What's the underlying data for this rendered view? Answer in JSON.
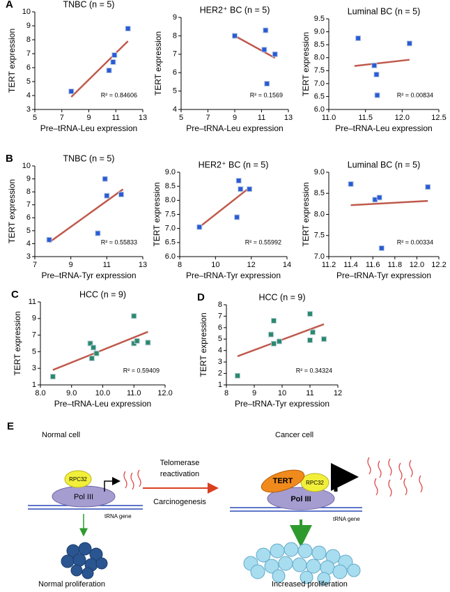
{
  "chart_data": [
    {
      "type": "scatter",
      "panel": "A",
      "title": "TNBC (n = 5)",
      "x_label": "Pre–tRNA-Leu expression",
      "y_label": "TERT expression",
      "annotation": "R² = 0.84606",
      "color": "#2a5bd7",
      "fit_color": "#bf5a4c",
      "x": [
        7.7,
        10.5,
        10.8,
        10.9,
        11.9
      ],
      "y": [
        4.3,
        5.8,
        6.4,
        6.9,
        8.8
      ],
      "fit": {
        "x": [
          7.7,
          11.9
        ],
        "y": [
          3.9,
          7.9
        ]
      },
      "xlim": [
        5,
        13
      ],
      "ylim": [
        3,
        10
      ],
      "xticks": [
        5,
        7,
        9,
        11,
        13
      ],
      "yticks": [
        3,
        4,
        5,
        6,
        7,
        8,
        9,
        10
      ]
    },
    {
      "type": "scatter",
      "title": "HER2⁺ BC (n = 5)",
      "x_label": "Pre–tRNA-Leu expression",
      "y_label": "TERT expression",
      "annotation": "R² = 0.1569",
      "color": "#2a5bd7",
      "fit_color": "#bf5a4c",
      "x": [
        9.0,
        11.2,
        11.3,
        11.4,
        12.0
      ],
      "y": [
        8.0,
        7.25,
        8.3,
        5.4,
        7.0
      ],
      "fit": {
        "x": [
          9.0,
          12.0
        ],
        "y": [
          8.0,
          6.8
        ]
      },
      "xlim": [
        5,
        13
      ],
      "ylim": [
        4,
        9
      ],
      "xticks": [
        5,
        7,
        9,
        11,
        13
      ],
      "yticks": [
        4,
        5,
        6,
        7,
        8,
        9
      ]
    },
    {
      "type": "scatter",
      "title": "Luminal BC (n = 5)",
      "x_label": "Pre–tRNA-Leu expression",
      "y_label": "TERT expression",
      "annotation": "R² = 0.00834",
      "color": "#2a5bd7",
      "fit_color": "#bf5a4c",
      "x": [
        11.4,
        11.62,
        11.65,
        11.66,
        12.1
      ],
      "y": [
        8.75,
        7.7,
        7.35,
        6.55,
        8.55
      ],
      "fit": {
        "x": [
          11.35,
          12.1
        ],
        "y": [
          7.68,
          7.92
        ]
      },
      "xlim": [
        11,
        12.5
      ],
      "ylim": [
        6,
        9.5
      ],
      "xticks": [
        {
          "value": 11,
          "label": "11.0"
        },
        11.5,
        {
          "value": 12,
          "label": "12.0"
        },
        12.5
      ],
      "yticks": [
        {
          "value": 6,
          "label": "6.0"
        },
        6.5,
        {
          "value": 7,
          "label": "7.0"
        },
        7.5,
        {
          "value": 8,
          "label": "8.0"
        },
        8.5,
        {
          "value": 9,
          "label": "9.0"
        },
        9.5
      ]
    },
    {
      "type": "scatter",
      "panel": "B",
      "title": "TNBC (n = 5)",
      "x_label": "Pre–tRNA-Tyr expression",
      "y_label": "TERT expression",
      "annotation": "R² = 0.55833",
      "color": "#2a5bd7",
      "fit_color": "#bf5a4c",
      "x": [
        7.8,
        10.5,
        10.9,
        11.0,
        11.8
      ],
      "y": [
        4.3,
        4.8,
        9.0,
        7.7,
        7.8
      ],
      "fit": {
        "x": [
          7.8,
          11.9
        ],
        "y": [
          4.1,
          8.2
        ]
      },
      "xlim": [
        7,
        13
      ],
      "ylim": [
        3,
        10
      ],
      "xticks": [
        7,
        9,
        11,
        13
      ],
      "yticks": [
        3,
        4,
        5,
        6,
        7,
        8,
        9,
        10
      ]
    },
    {
      "type": "scatter",
      "title": "HER2⁺ BC (n = 5)",
      "x_label": "Pre–tRNA-Tyr expression",
      "y_label": "TERT expression",
      "annotation": "R² = 0.55992",
      "color": "#2a5bd7",
      "fit_color": "#bf5a4c",
      "x": [
        9.1,
        11.2,
        11.3,
        11.4,
        11.9
      ],
      "y": [
        7.05,
        7.4,
        8.7,
        8.4,
        8.4
      ],
      "fit": {
        "x": [
          9.1,
          11.9
        ],
        "y": [
          7.05,
          8.45
        ]
      },
      "xlim": [
        8,
        14
      ],
      "ylim": [
        6,
        9
      ],
      "xticks": [
        8,
        10,
        12,
        14
      ],
      "yticks": [
        {
          "value": 6,
          "label": "6.0"
        },
        6.5,
        {
          "value": 7,
          "label": "7.0"
        },
        7.5,
        {
          "value": 8,
          "label": "8.0"
        },
        8.5,
        {
          "value": 9,
          "label": "9.0"
        }
      ]
    },
    {
      "type": "scatter",
      "title": "Luminal BC (n = 5)",
      "x_label": "Pre–tRNA-Tyr expression",
      "y_label": "TERT expression",
      "annotation": "R² = 0.00334",
      "color": "#2a5bd7",
      "fit_color": "#bf5a4c",
      "x": [
        11.4,
        11.62,
        11.66,
        11.68,
        12.1
      ],
      "y": [
        8.72,
        8.35,
        8.4,
        7.2,
        8.65
      ],
      "fit": {
        "x": [
          11.4,
          12.1
        ],
        "y": [
          8.22,
          8.32
        ]
      },
      "xlim": [
        11.2,
        12.2
      ],
      "ylim": [
        7,
        9
      ],
      "xticks": [
        11.2,
        11.4,
        11.6,
        11.8,
        {
          "value": 12,
          "label": "12.0"
        },
        12.2
      ],
      "yticks": [
        {
          "value": 7,
          "label": "7.0"
        },
        7.5,
        {
          "value": 8,
          "label": "8.0"
        },
        8.5,
        {
          "value": 9,
          "label": "9.0"
        }
      ]
    },
    {
      "type": "scatter",
      "panel": "C",
      "title": "HCC (n = 9)",
      "x_label": "Pre–tRNA-Leu expression",
      "y_label": "TERT expression",
      "annotation": "R² = 0.59409",
      "color": "#2a8a6c",
      "fit_color": "#bf5a4c",
      "x": [
        8.4,
        9.6,
        9.65,
        9.7,
        9.8,
        11.0,
        11.0,
        11.1,
        11.45
      ],
      "y": [
        2.0,
        6.0,
        4.2,
        5.5,
        4.8,
        9.3,
        6.0,
        6.3,
        6.1
      ],
      "fit": {
        "x": [
          8.4,
          11.45
        ],
        "y": [
          2.8,
          7.4
        ]
      },
      "xlim": [
        8,
        12
      ],
      "ylim": [
        1,
        11
      ],
      "xticks": [
        {
          "value": 8,
          "label": "8.0"
        },
        {
          "value": 9,
          "label": "9.0"
        },
        {
          "value": 10,
          "label": "10.0"
        },
        {
          "value": 11,
          "label": "11.0"
        },
        {
          "value": 12,
          "label": "12.0"
        }
      ],
      "yticks": [
        1,
        3,
        5,
        7,
        9,
        11
      ]
    },
    {
      "type": "scatter",
      "panel": "D",
      "title": "HCC (n = 9)",
      "x_label": "Pre–tRNA-Tyr expression",
      "y_label": "TERT expression",
      "annotation": "R² = 0.34324",
      "color": "#2a8a6c",
      "fit_color": "#bf5a4c",
      "x": [
        8.4,
        9.6,
        9.7,
        9.7,
        9.9,
        11.0,
        11.0,
        11.1,
        11.5
      ],
      "y": [
        1.8,
        5.4,
        4.6,
        6.6,
        4.8,
        7.2,
        4.9,
        5.6,
        5.0
      ],
      "fit": {
        "x": [
          8.4,
          11.5
        ],
        "y": [
          3.5,
          6.3
        ]
      },
      "xlim": [
        8,
        12
      ],
      "ylim": [
        1,
        8
      ],
      "xticks": [
        8,
        9,
        10,
        11,
        12
      ],
      "yticks": [
        1,
        2,
        3,
        4,
        5,
        6,
        7,
        8
      ]
    }
  ],
  "diagram": {
    "panel": "E",
    "normal": {
      "title": "Normal cell",
      "rpc": "RPC32",
      "polymerase": "Pol III",
      "gene": "tRNA gene",
      "outcome": "Normal proliferation"
    },
    "transition": {
      "top": [
        "Telomerase",
        "reactivation"
      ],
      "bottom": "Carcinogenesis"
    },
    "cancer": {
      "title": "Cancer cell",
      "tert": "TERT",
      "rpc": "RPC32",
      "polymerase": "Pol III",
      "gene": "tRNA gene",
      "outcome": "Increased proliferation"
    }
  }
}
